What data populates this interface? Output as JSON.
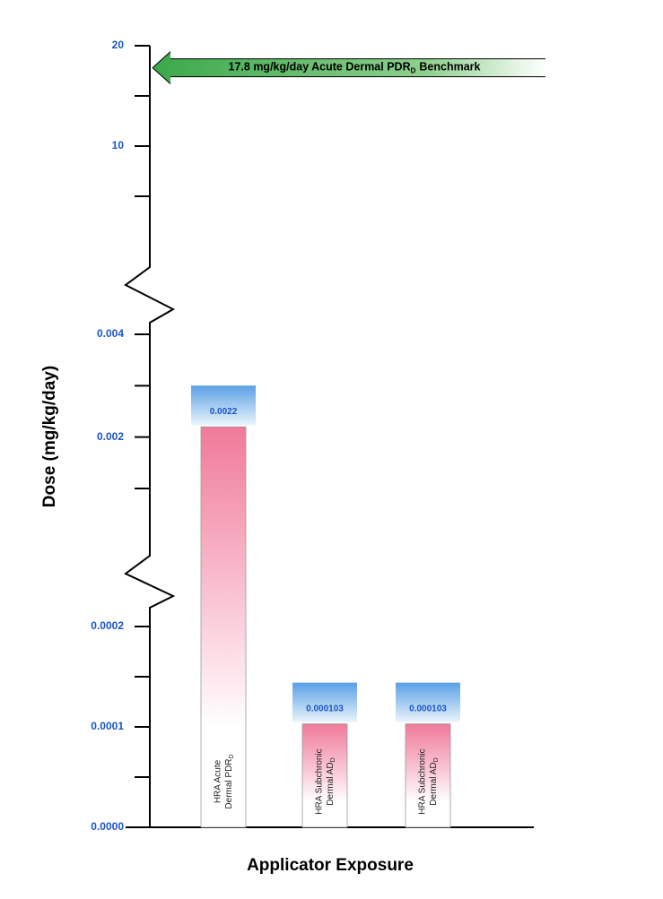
{
  "chart_data": {
    "type": "broken-axis-bar",
    "y_axis_title": "Dose (mg/kg/day)",
    "x_axis_title": "Applicator Exposure",
    "segments": [
      {
        "ylim": [
          0,
          0.0002
        ],
        "yticks": [
          {
            "value": 0,
            "label": "0.0000"
          },
          0.0001,
          0.0002
        ],
        "minor_ticks": [
          5e-05,
          0.00015
        ]
      },
      {
        "ylim": [
          0.001,
          0.004
        ],
        "yticks": [
          0.002,
          0.004
        ],
        "minor_ticks": [
          0.001,
          0.003
        ]
      },
      {
        "ylim": [
          5,
          20
        ],
        "yticks": [
          10,
          20
        ],
        "minor_ticks": [
          5,
          15
        ]
      }
    ],
    "categories": [
      [
        "HRA Acute",
        "Dermal PDR"
      ],
      [
        "HRA Subchronic",
        "Dermal AD"
      ],
      [
        "HRA Subchronic",
        "Dermal AD"
      ]
    ],
    "category_subscripts": [
      "D",
      "D",
      "D"
    ],
    "values": [
      0.0022,
      0.000103,
      0.000103
    ],
    "benchmark": {
      "value": 17.8,
      "label": "17.8 mg/kg/day Acute Dermal PDR",
      "label_subscript": "D",
      "label_suffix": "Benchmark"
    }
  }
}
